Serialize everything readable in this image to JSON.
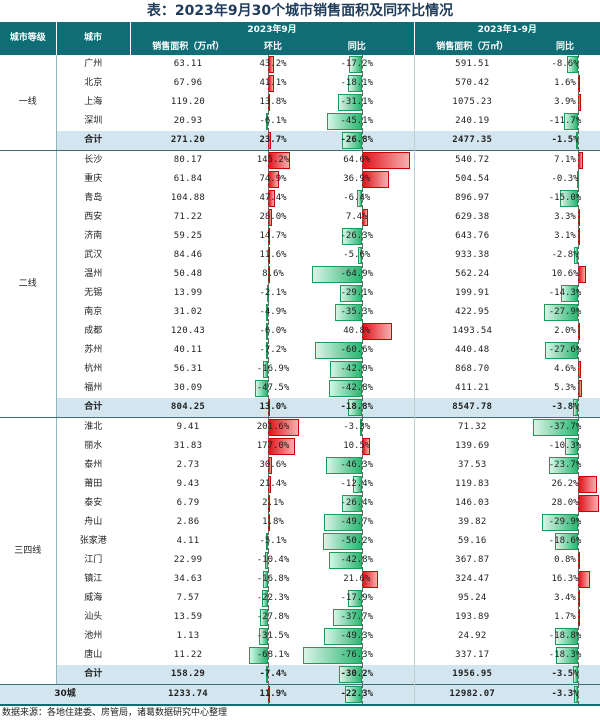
{
  "title": "表：2023年9月30个城市销售面积及同环比情况",
  "headers": {
    "tier": "城市等级",
    "city": "城市",
    "month_group": "2023年9月",
    "ytd_group": "2023年1-9月",
    "sales_area": "销售面积（万㎡）",
    "mom": "环比",
    "yoy": "同比"
  },
  "groups": [
    {
      "tier": "一线",
      "rows": [
        {
          "city": "广州",
          "area": "63.11",
          "mom": "43.2%",
          "yoy": "-17.2%",
          "ytd_area": "591.51",
          "ytd_yoy": "-8.6%"
        },
        {
          "city": "北京",
          "area": "67.96",
          "mom": "41.1%",
          "yoy": "-18.1%",
          "ytd_area": "570.42",
          "ytd_yoy": "1.6%"
        },
        {
          "city": "上海",
          "area": "119.20",
          "mom": "13.8%",
          "yoy": "-31.1%",
          "ytd_area": "1075.23",
          "ytd_yoy": "3.9%"
        },
        {
          "city": "深圳",
          "area": "20.93",
          "mom": "-6.1%",
          "yoy": "-45.1%",
          "ytd_area": "240.19",
          "ytd_yoy": "-11.7%"
        }
      ],
      "subtotal": {
        "label": "合计",
        "area": "271.20",
        "mom": "23.7%",
        "yoy": "-26.8%",
        "ytd_area": "2477.35",
        "ytd_yoy": "-1.5%"
      }
    },
    {
      "tier": "二线",
      "rows": [
        {
          "city": "长沙",
          "area": "80.17",
          "mom": "145.2%",
          "yoy": "64.6%",
          "ytd_area": "540.72",
          "ytd_yoy": "7.1%"
        },
        {
          "city": "重庆",
          "area": "61.84",
          "mom": "74.9%",
          "yoy": "36.9%",
          "ytd_area": "504.54",
          "ytd_yoy": "-0.3%"
        },
        {
          "city": "青岛",
          "area": "104.88",
          "mom": "47.4%",
          "yoy": "-6.4%",
          "ytd_area": "896.97",
          "ytd_yoy": "-15.0%"
        },
        {
          "city": "西安",
          "area": "71.22",
          "mom": "28.0%",
          "yoy": "7.4%",
          "ytd_area": "629.38",
          "ytd_yoy": "3.3%"
        },
        {
          "city": "济南",
          "area": "59.25",
          "mom": "14.7%",
          "yoy": "-26.3%",
          "ytd_area": "643.76",
          "ytd_yoy": "3.1%"
        },
        {
          "city": "武汉",
          "area": "84.46",
          "mom": "11.6%",
          "yoy": "-5.6%",
          "ytd_area": "933.38",
          "ytd_yoy": "-2.8%"
        },
        {
          "city": "温州",
          "area": "50.48",
          "mom": "8.6%",
          "yoy": "-64.9%",
          "ytd_area": "562.24",
          "ytd_yoy": "10.6%"
        },
        {
          "city": "无锡",
          "area": "13.99",
          "mom": "-2.1%",
          "yoy": "-29.1%",
          "ytd_area": "199.91",
          "ytd_yoy": "-14.3%"
        },
        {
          "city": "南京",
          "area": "31.02",
          "mom": "-4.9%",
          "yoy": "-35.3%",
          "ytd_area": "422.95",
          "ytd_yoy": "-27.9%"
        },
        {
          "city": "成都",
          "area": "120.43",
          "mom": "-6.0%",
          "yoy": "40.8%",
          "ytd_area": "1493.54",
          "ytd_yoy": "2.0%"
        },
        {
          "city": "苏州",
          "area": "40.11",
          "mom": "-7.2%",
          "yoy": "-60.6%",
          "ytd_area": "440.48",
          "ytd_yoy": "-27.6%"
        },
        {
          "city": "杭州",
          "area": "56.31",
          "mom": "-16.9%",
          "yoy": "-42.0%",
          "ytd_area": "868.70",
          "ytd_yoy": "4.6%"
        },
        {
          "city": "福州",
          "area": "30.09",
          "mom": "-47.5%",
          "yoy": "-42.8%",
          "ytd_area": "411.21",
          "ytd_yoy": "5.3%"
        }
      ],
      "subtotal": {
        "label": "合计",
        "area": "804.25",
        "mom": "13.0%",
        "yoy": "-18.8%",
        "ytd_area": "8547.78",
        "ytd_yoy": "-3.8%"
      }
    },
    {
      "tier": "三四线",
      "rows": [
        {
          "city": "淮北",
          "area": "9.41",
          "mom": "201.6%",
          "yoy": "-3.3%",
          "ytd_area": "71.32",
          "ytd_yoy": "-37.7%"
        },
        {
          "city": "丽水",
          "area": "31.83",
          "mom": "177.0%",
          "yoy": "10.5%",
          "ytd_area": "139.69",
          "ytd_yoy": "-10.3%"
        },
        {
          "city": "泰州",
          "area": "2.73",
          "mom": "30.6%",
          "yoy": "-46.3%",
          "ytd_area": "37.53",
          "ytd_yoy": "-23.7%"
        },
        {
          "city": "莆田",
          "area": "9.43",
          "mom": "21.4%",
          "yoy": "-12.4%",
          "ytd_area": "119.83",
          "ytd_yoy": "26.2%"
        },
        {
          "city": "泰安",
          "area": "6.79",
          "mom": "2.1%",
          "yoy": "-26.4%",
          "ytd_area": "146.03",
          "ytd_yoy": "28.0%"
        },
        {
          "city": "舟山",
          "area": "2.86",
          "mom": "1.8%",
          "yoy": "-49.7%",
          "ytd_area": "39.82",
          "ytd_yoy": "-29.9%"
        },
        {
          "city": "张家港",
          "area": "4.11",
          "mom": "-5.1%",
          "yoy": "-50.2%",
          "ytd_area": "59.16",
          "ytd_yoy": "-18.6%"
        },
        {
          "city": "江门",
          "area": "22.99",
          "mom": "-10.4%",
          "yoy": "-42.8%",
          "ytd_area": "367.87",
          "ytd_yoy": "0.8%"
        },
        {
          "city": "镇江",
          "area": "34.63",
          "mom": "-16.8%",
          "yoy": "21.6%",
          "ytd_area": "324.47",
          "ytd_yoy": "16.3%"
        },
        {
          "city": "威海",
          "area": "7.57",
          "mom": "-22.3%",
          "yoy": "-17.9%",
          "ytd_area": "95.24",
          "ytd_yoy": "3.4%"
        },
        {
          "city": "汕头",
          "area": "13.59",
          "mom": "-27.8%",
          "yoy": "-37.7%",
          "ytd_area": "193.89",
          "ytd_yoy": "1.7%"
        },
        {
          "city": "池州",
          "area": "1.13",
          "mom": "-31.5%",
          "yoy": "-49.3%",
          "ytd_area": "24.92",
          "ytd_yoy": "-18.8%"
        },
        {
          "city": "唐山",
          "area": "11.22",
          "mom": "-68.1%",
          "yoy": "-76.3%",
          "ytd_area": "337.17",
          "ytd_yoy": "-18.3%"
        }
      ],
      "subtotal": {
        "label": "合计",
        "area": "158.29",
        "mom": "-7.4%",
        "yoy": "-30.2%",
        "ytd_area": "1956.95",
        "ytd_yoy": "-3.5%"
      }
    }
  ],
  "total": {
    "label": "30城",
    "area": "1233.74",
    "mom": "11.9%",
    "yoy": "-22.3%",
    "ytd_area": "12982.07",
    "ytd_yoy": "-3.3%"
  },
  "footnote": "数据来源：各地住建委、房管局，诸葛数据研究中心整理",
  "colors": {
    "header_bg": "#0e6d75",
    "subtotal_bg": "#d3e6ef",
    "positive": "#e0141b",
    "negative": "#2bb673"
  }
}
